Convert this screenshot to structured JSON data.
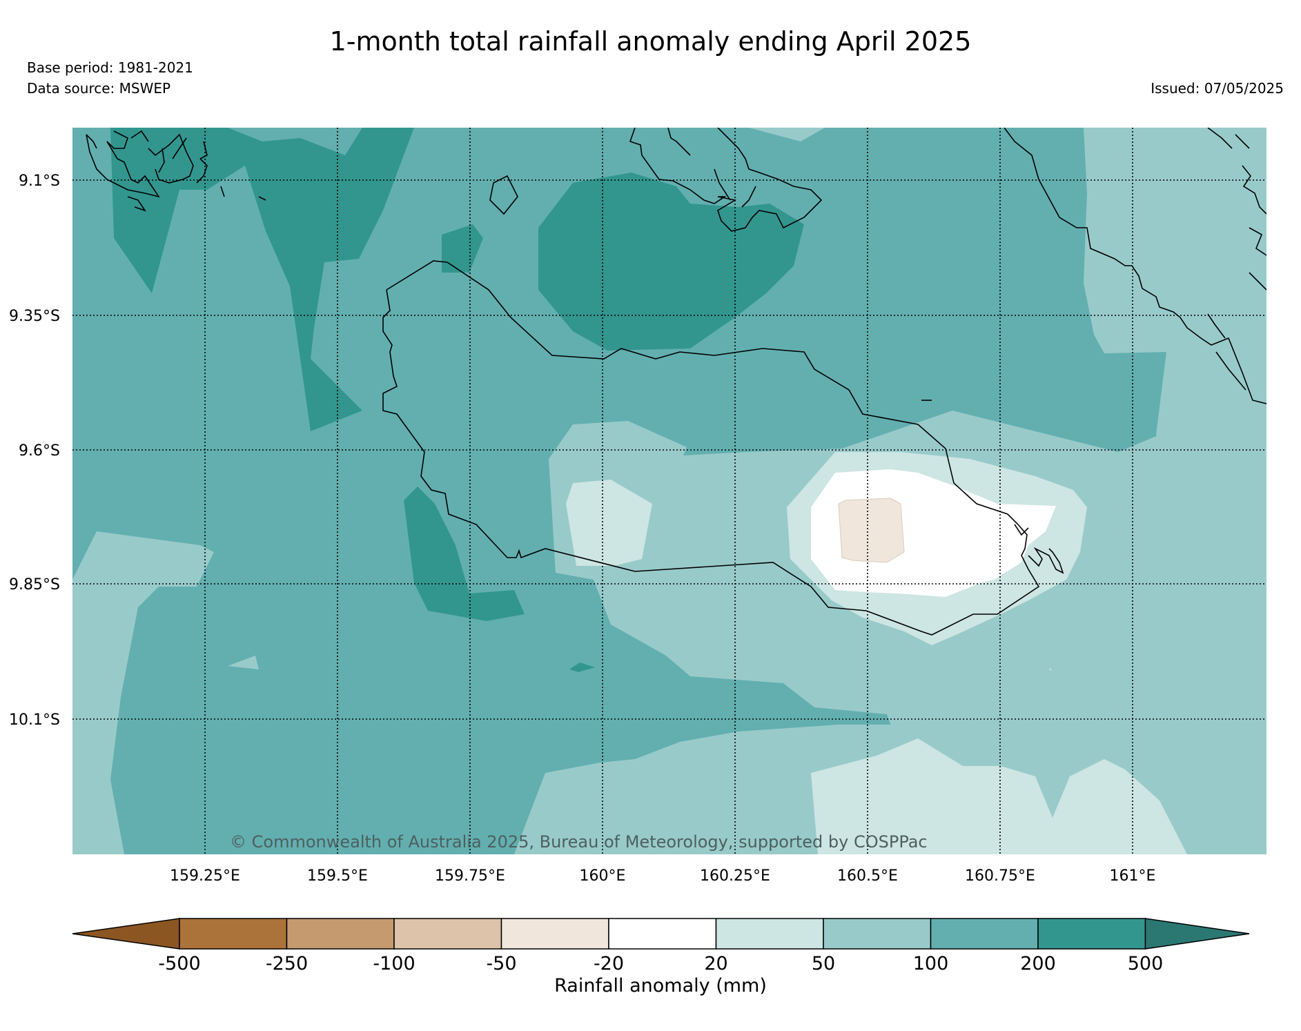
{
  "header": {
    "title": "1-month total rainfall anomaly ending April 2025",
    "base_period": "Base period: 1981-2021",
    "data_source": "Data source: MSWEP",
    "issued": "Issued: 07/05/2025"
  },
  "map": {
    "lat_labels": [
      "9.1°S",
      "9.35°S",
      "9.6°S",
      "9.85°S",
      "10.1°S"
    ],
    "lon_labels": [
      "159.25°E",
      "159.5°E",
      "159.75°E",
      "160°E",
      "160.25°E",
      "160.5°E",
      "160.75°E",
      "161°E"
    ],
    "copyright": "© Commonwealth of Australia 2025, Bureau of Meteorology, supported by COSPPac",
    "grid": "dotted",
    "coastlines": true
  },
  "colorbar": {
    "label": "Rainfall anomaly (mm)",
    "ticks": [
      "-500",
      "-250",
      "-100",
      "-50",
      "-20",
      "20",
      "50",
      "100",
      "200",
      "500"
    ],
    "colors": [
      "#8c5622",
      "#ab7239",
      "#c49a6e",
      "#dcc3a9",
      "#f0e6dc",
      "#ffffff",
      "#cde5e3",
      "#99caca",
      "#63afb0",
      "#32968f",
      "#2b7873"
    ],
    "extend": "both"
  },
  "legend_colors": {
    "level_20_50": "#cde5e3",
    "level_50_100": "#99caca",
    "level_100_200": "#63afb0",
    "level_200_500": "#32968f",
    "level_m50_m20": "#f0e6dc",
    "level_m20_20": "#ffffff"
  }
}
